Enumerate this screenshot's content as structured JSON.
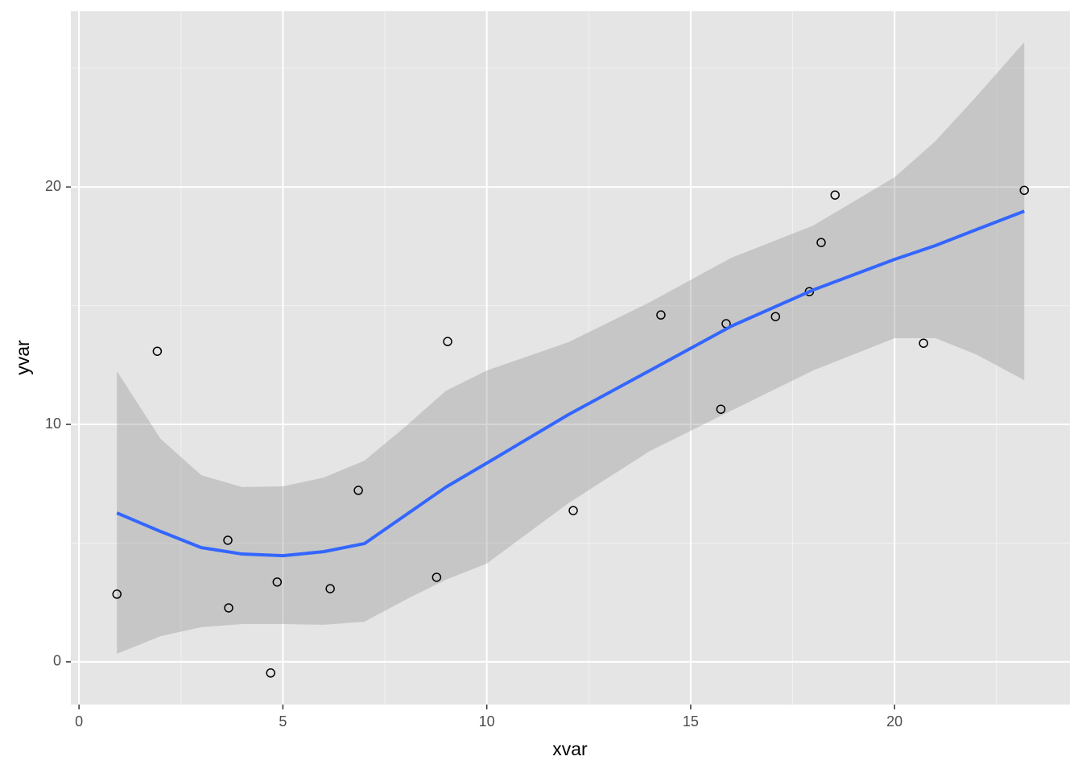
{
  "chart_data": {
    "type": "scatter",
    "x_label": "xvar",
    "y_label": "yvar",
    "xlim": [
      -0.2,
      24.3
    ],
    "ylim": [
      -1.8,
      27.4
    ],
    "xticks": [
      0,
      5,
      10,
      15,
      20
    ],
    "yticks": [
      0,
      10,
      20
    ],
    "grid": true,
    "x": [
      0.93,
      1.92,
      3.65,
      3.67,
      4.7,
      4.86,
      6.16,
      6.85,
      8.77,
      9.04,
      12.12,
      14.27,
      15.74,
      15.87,
      17.08,
      17.91,
      18.2,
      18.54,
      20.71,
      23.18
    ],
    "y": [
      2.85,
      13.08,
      5.12,
      2.27,
      -0.47,
      3.36,
      3.08,
      7.22,
      3.56,
      13.49,
      6.37,
      14.61,
      10.64,
      14.24,
      14.54,
      15.59,
      17.66,
      19.66,
      13.42,
      19.86
    ],
    "point_color": "#000000",
    "smooth": {
      "color": "#3366FF",
      "band_color": "#999999",
      "x": [
        0.93,
        2,
        3,
        4,
        5,
        6,
        7,
        8,
        9,
        10,
        12,
        14,
        16,
        18,
        20,
        21,
        22,
        23.18
      ],
      "y": [
        6.27,
        5.49,
        4.81,
        4.54,
        4.47,
        4.64,
        4.98,
        6.17,
        7.36,
        8.37,
        10.41,
        12.27,
        14.14,
        15.66,
        16.95,
        17.53,
        18.2,
        18.98
      ],
      "lower": [
        0.34,
        1.08,
        1.46,
        1.59,
        1.59,
        1.56,
        1.69,
        2.61,
        3.46,
        4.14,
        6.68,
        8.88,
        10.58,
        12.27,
        13.63,
        13.63,
        12.95,
        11.86
      ],
      "upper": [
        12.24,
        9.39,
        7.86,
        7.36,
        7.39,
        7.76,
        8.47,
        9.9,
        11.42,
        12.27,
        13.46,
        15.15,
        17.02,
        18.37,
        20.41,
        21.93,
        23.8,
        26.1
      ]
    }
  }
}
